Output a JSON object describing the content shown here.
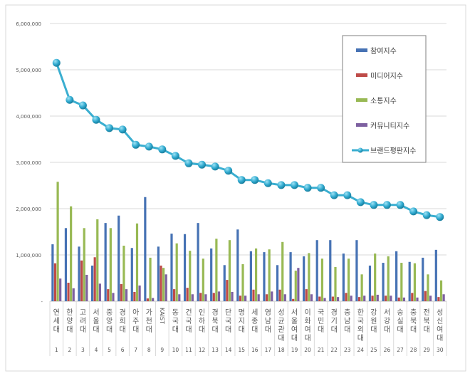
{
  "chart_data": {
    "type": "bar+line",
    "title": "",
    "xlabel": "",
    "ylabel": "",
    "ylim": [
      0,
      6000000
    ],
    "yticks": [
      0,
      1000000,
      2000000,
      3000000,
      4000000,
      5000000,
      6000000
    ],
    "ytick_labels": [
      "-",
      "1,000,000",
      "2,000,000",
      "3,000,000",
      "4,000,000",
      "5,000,000",
      "6,000,000"
    ],
    "grid": true,
    "legend_position": "top-right",
    "categories": [
      "연세대",
      "한양대",
      "고려대",
      "서울대",
      "중앙대",
      "경희대",
      "아주대",
      "가천대",
      "KAIST",
      "동국대",
      "건국대",
      "인하대",
      "경북대",
      "단국대",
      "명지대",
      "세종대",
      "영남대",
      "성균관대",
      "서울여대",
      "이화여대",
      "국민대",
      "경기대",
      "충남대",
      "한국외대",
      "강원대",
      "서강대",
      "숭실대",
      "충북대",
      "전북대",
      "성신여대"
    ],
    "ranks": [
      "1",
      "2",
      "3",
      "4",
      "5",
      "6",
      "7",
      "8",
      "9",
      "10",
      "11",
      "12",
      "13",
      "14",
      "15",
      "16",
      "17",
      "18",
      "19",
      "20",
      "21",
      "22",
      "23",
      "24",
      "25",
      "26",
      "27",
      "28",
      "29",
      "30"
    ],
    "series": [
      {
        "name": "참여지수",
        "type": "bar",
        "color": "#4672b4",
        "values": [
          1230000,
          1580000,
          1180000,
          770000,
          1690000,
          1850000,
          1150000,
          2250000,
          1180000,
          1460000,
          1450000,
          1690000,
          1140000,
          780000,
          1550000,
          1080000,
          1060000,
          780000,
          1060000,
          970000,
          1320000,
          1320000,
          1030000,
          1320000,
          770000,
          830000,
          1080000,
          850000,
          940000,
          1110000
        ]
      },
      {
        "name": "미디어지수",
        "type": "bar",
        "color": "#be4b48",
        "values": [
          820000,
          400000,
          880000,
          950000,
          260000,
          370000,
          200000,
          60000,
          770000,
          260000,
          290000,
          180000,
          180000,
          460000,
          120000,
          250000,
          150000,
          250000,
          50000,
          260000,
          100000,
          100000,
          180000,
          90000,
          120000,
          120000,
          80000,
          180000,
          220000,
          90000
        ]
      },
      {
        "name": "소통지수",
        "type": "bar",
        "color": "#98b954",
        "values": [
          2580000,
          2050000,
          1580000,
          1770000,
          1580000,
          1200000,
          1680000,
          940000,
          720000,
          1250000,
          1090000,
          920000,
          1350000,
          1320000,
          800000,
          1140000,
          1120000,
          1280000,
          660000,
          1040000,
          920000,
          740000,
          920000,
          580000,
          1030000,
          970000,
          830000,
          820000,
          580000,
          450000
        ]
      },
      {
        "name": "커뮤니티지수",
        "type": "bar",
        "color": "#7d60a0",
        "values": [
          490000,
          280000,
          570000,
          380000,
          180000,
          260000,
          340000,
          70000,
          580000,
          150000,
          150000,
          150000,
          210000,
          200000,
          120000,
          150000,
          210000,
          150000,
          720000,
          150000,
          70000,
          90000,
          120000,
          120000,
          140000,
          120000,
          80000,
          80000,
          120000,
          150000
        ]
      },
      {
        "name": "브랜드평판지수",
        "type": "line",
        "color": "#3aaed0",
        "values": [
          5150000,
          4350000,
          4230000,
          3920000,
          3740000,
          3710000,
          3380000,
          3340000,
          3280000,
          3140000,
          2980000,
          2950000,
          2910000,
          2820000,
          2620000,
          2620000,
          2550000,
          2510000,
          2510000,
          2450000,
          2450000,
          2290000,
          2290000,
          2140000,
          2080000,
          2080000,
          2080000,
          1940000,
          1860000,
          1820000
        ]
      }
    ]
  }
}
